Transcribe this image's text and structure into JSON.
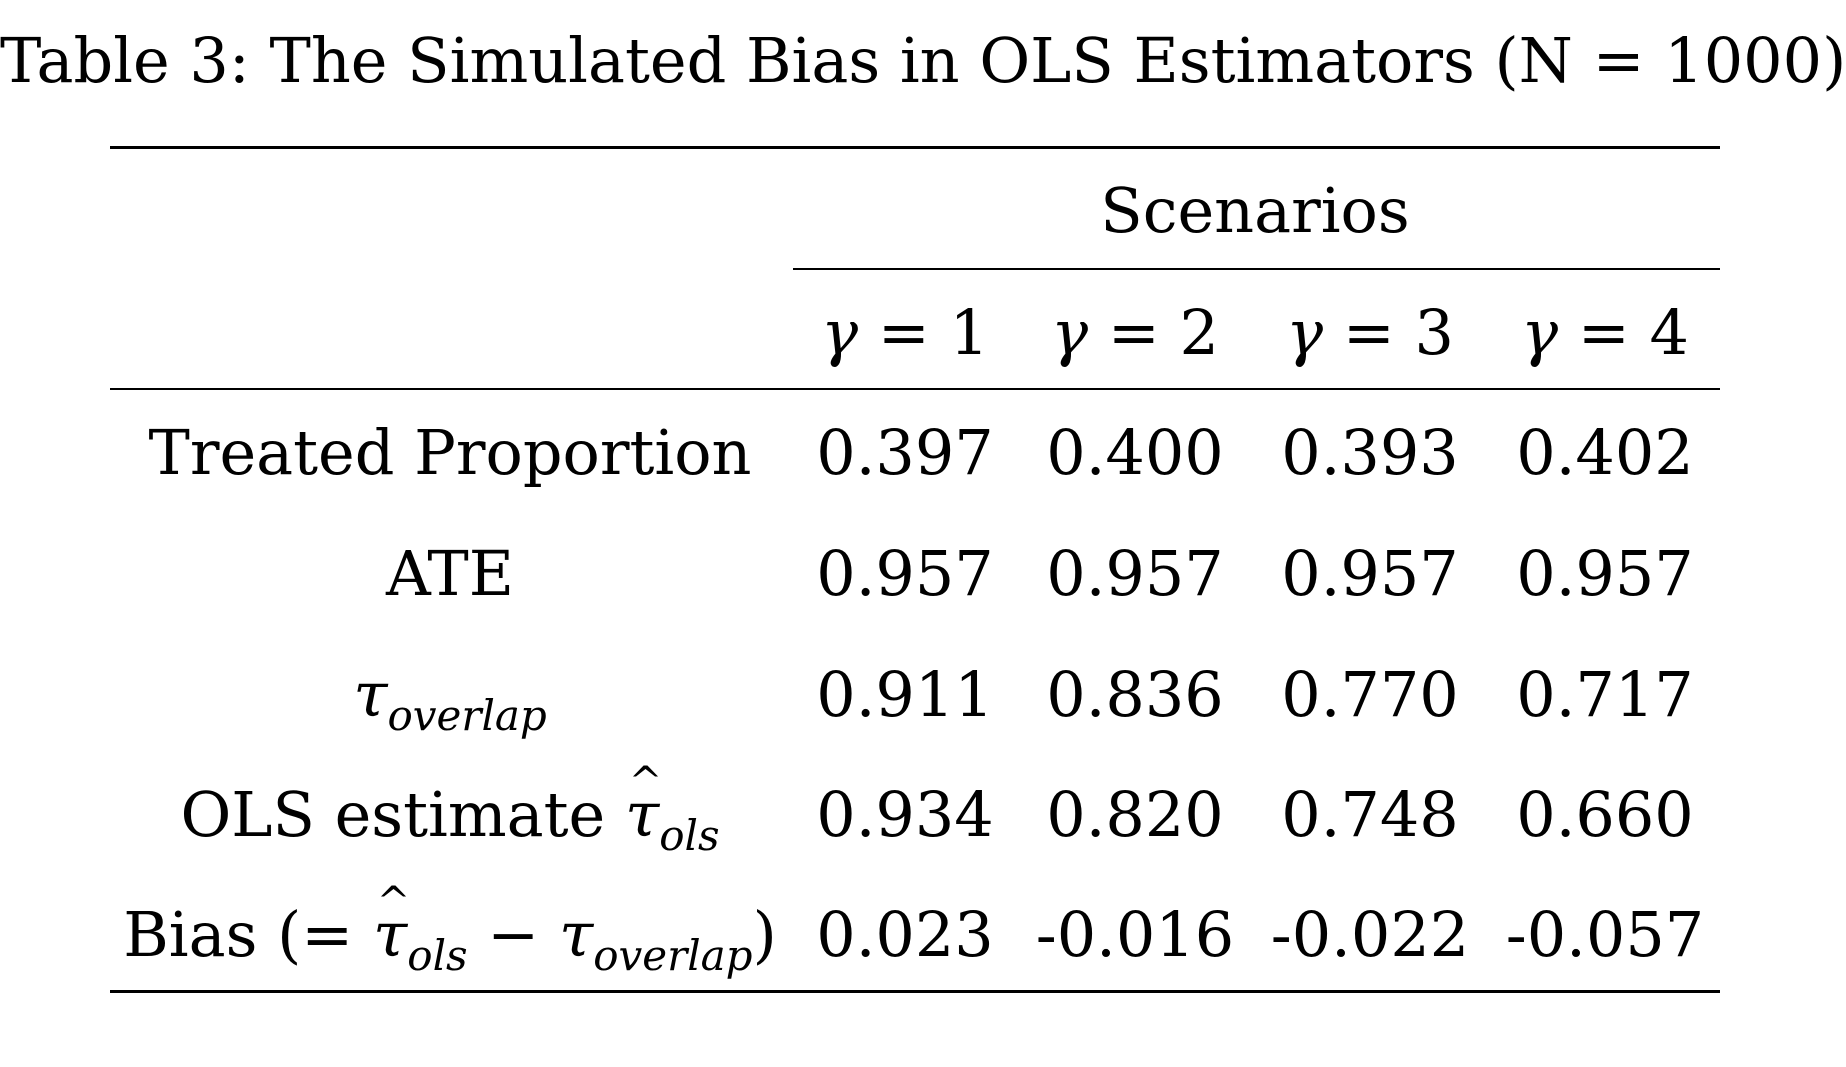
{
  "caption": "Table 3: The Simulated Bias in OLS Estimators (N = 1000)",
  "header": {
    "group_label": "Scenarios",
    "columns": [
      {
        "symbol": "γ",
        "relation": " = ",
        "value": "1"
      },
      {
        "symbol": "γ",
        "relation": " = ",
        "value": "2"
      },
      {
        "symbol": "γ",
        "relation": " = ",
        "value": "3"
      },
      {
        "symbol": "γ",
        "relation": " = ",
        "value": "4"
      }
    ]
  },
  "rows": [
    {
      "label": "Treated Proportion",
      "values": [
        "0.397",
        "0.400",
        "0.393",
        "0.402"
      ]
    },
    {
      "label": "ATE",
      "values": [
        "0.957",
        "0.957",
        "0.957",
        "0.957"
      ]
    },
    {
      "label_symbol": "τ",
      "label_sub": "overlap",
      "values": [
        "0.911",
        "0.836",
        "0.770",
        "0.717"
      ]
    },
    {
      "label_prefix": "OLS estimate ",
      "label_symbol": "τ",
      "label_sub": "ols",
      "values": [
        "0.934",
        "0.820",
        "0.748",
        "0.660"
      ]
    },
    {
      "label_prefix": "Bias (= ",
      "label_symbol": "τ",
      "label_sub": "ols",
      "label_minus": " − ",
      "label_symbol2": "τ",
      "label_sub2": "overlap",
      "label_suffix": ")",
      "values": [
        "0.023",
        "-0.016",
        "-0.022",
        "-0.057"
      ]
    }
  ]
}
